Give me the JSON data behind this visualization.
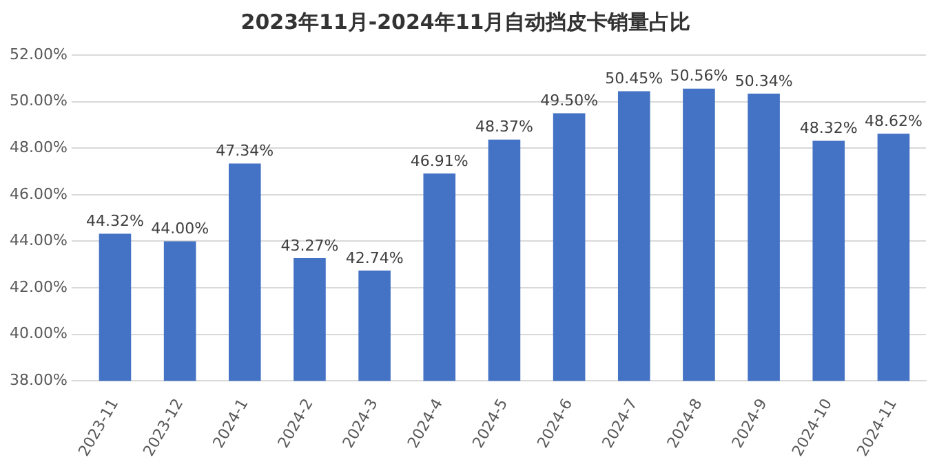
{
  "chart_data": {
    "type": "bar",
    "title": "2023年11月-2024年11月自动挡皮卡销量占比",
    "categories": [
      "2023-11",
      "2023-12",
      "2024-1",
      "2024-2",
      "2024-3",
      "2024-4",
      "2024-5",
      "2024-6",
      "2024-7",
      "2024-8",
      "2024-9",
      "2024-10",
      "2024-11"
    ],
    "values": [
      44.32,
      44.0,
      47.34,
      43.27,
      42.74,
      46.91,
      48.37,
      49.5,
      50.45,
      50.56,
      50.34,
      48.32,
      48.62
    ],
    "value_labels": [
      "44.32%",
      "44.00%",
      "47.34%",
      "43.27%",
      "42.74%",
      "46.91%",
      "48.37%",
      "49.50%",
      "50.45%",
      "50.56%",
      "50.34%",
      "48.32%",
      "48.62%"
    ],
    "color": "#4472c4",
    "ylim": [
      38,
      52
    ],
    "yticks": [
      {
        "value": 38,
        "label": "38.00%"
      },
      {
        "value": 40,
        "label": "40.00%"
      },
      {
        "value": 42,
        "label": "42.00%"
      },
      {
        "value": 44,
        "label": "44.00%"
      },
      {
        "value": 46,
        "label": "46.00%"
      },
      {
        "value": 48,
        "label": "48.00%"
      },
      {
        "value": 50,
        "label": "50.00%"
      },
      {
        "value": 52,
        "label": "52.00%"
      }
    ],
    "grid": "y",
    "legend": false
  }
}
